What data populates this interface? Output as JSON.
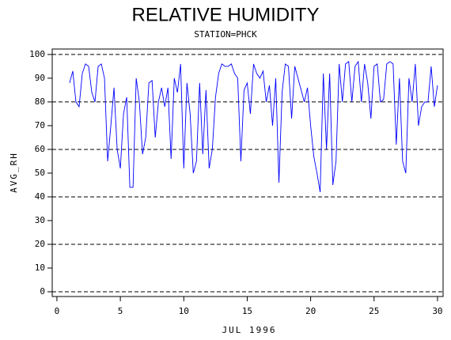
{
  "chart_data": {
    "type": "line",
    "title": "RELATIVE HUMIDITY",
    "subtitle": "STATION=PHCK",
    "x_label": "JUL 1996",
    "y_label": "AVG_RH",
    "xlim": [
      -0.37,
      30.44
    ],
    "ylim": [
      -2,
      102.3
    ],
    "xticks": [
      0,
      5,
      10,
      15,
      20,
      25,
      30
    ],
    "yticks": [
      0,
      10,
      20,
      30,
      40,
      50,
      60,
      70,
      80,
      90,
      100
    ],
    "ygrid": [
      0,
      20,
      40,
      60,
      80,
      100
    ],
    "x": [
      1,
      1.25,
      1.5,
      1.75,
      2,
      2.25,
      2.5,
      2.75,
      3,
      3.25,
      3.5,
      3.75,
      4,
      4.25,
      4.5,
      4.75,
      5,
      5.25,
      5.5,
      5.75,
      6,
      6.25,
      6.5,
      6.75,
      7,
      7.25,
      7.5,
      7.75,
      8,
      8.25,
      8.5,
      8.75,
      9,
      9.25,
      9.5,
      9.75,
      10,
      10.25,
      10.5,
      10.75,
      11,
      11.25,
      11.5,
      11.75,
      12,
      12.25,
      12.5,
      12.75,
      13,
      13.25,
      13.5,
      13.75,
      14,
      14.25,
      14.5,
      14.75,
      15,
      15.25,
      15.5,
      15.75,
      16,
      16.25,
      16.5,
      16.75,
      17,
      17.25,
      17.5,
      17.75,
      18,
      18.25,
      18.5,
      18.75,
      19,
      19.25,
      19.5,
      19.75,
      20,
      20.25,
      20.5,
      20.75,
      21,
      21.25,
      21.5,
      21.75,
      22,
      22.25,
      22.5,
      22.75,
      23,
      23.25,
      23.5,
      23.75,
      24,
      24.25,
      24.5,
      24.75,
      25,
      25.25,
      25.5,
      25.75,
      26,
      26.25,
      26.5,
      26.75,
      27,
      27.25,
      27.5,
      27.75,
      28,
      28.25,
      28.5,
      28.75,
      29,
      29.25,
      29.5,
      29.75,
      30
    ],
    "series": [
      {
        "color": "#0000ff",
        "values": [
          88,
          93,
          80,
          78,
          92,
          96,
          95,
          84,
          80,
          95,
          96,
          90,
          55,
          70,
          86,
          60,
          52,
          75,
          82,
          44,
          44,
          90,
          80,
          58,
          65,
          88,
          89,
          65,
          80,
          86,
          78,
          86,
          56,
          90,
          84,
          96,
          52,
          88,
          75,
          50,
          55,
          88,
          58,
          85,
          52,
          60,
          82,
          92,
          96,
          95,
          95,
          96,
          92,
          90,
          55,
          85,
          88,
          75,
          96,
          92,
          90,
          93,
          80,
          87,
          70,
          90,
          46,
          84,
          96,
          95,
          73,
          95,
          90,
          85,
          80,
          86,
          70,
          57,
          50,
          42,
          92,
          60,
          92,
          45,
          55,
          96,
          80,
          96,
          97,
          80,
          95,
          97,
          80,
          96,
          88,
          73,
          95,
          96,
          80,
          81,
          96,
          97,
          96,
          62,
          90,
          55,
          50,
          90,
          80,
          96,
          70,
          78,
          80,
          80,
          95,
          78,
          87
        ]
      }
    ]
  }
}
